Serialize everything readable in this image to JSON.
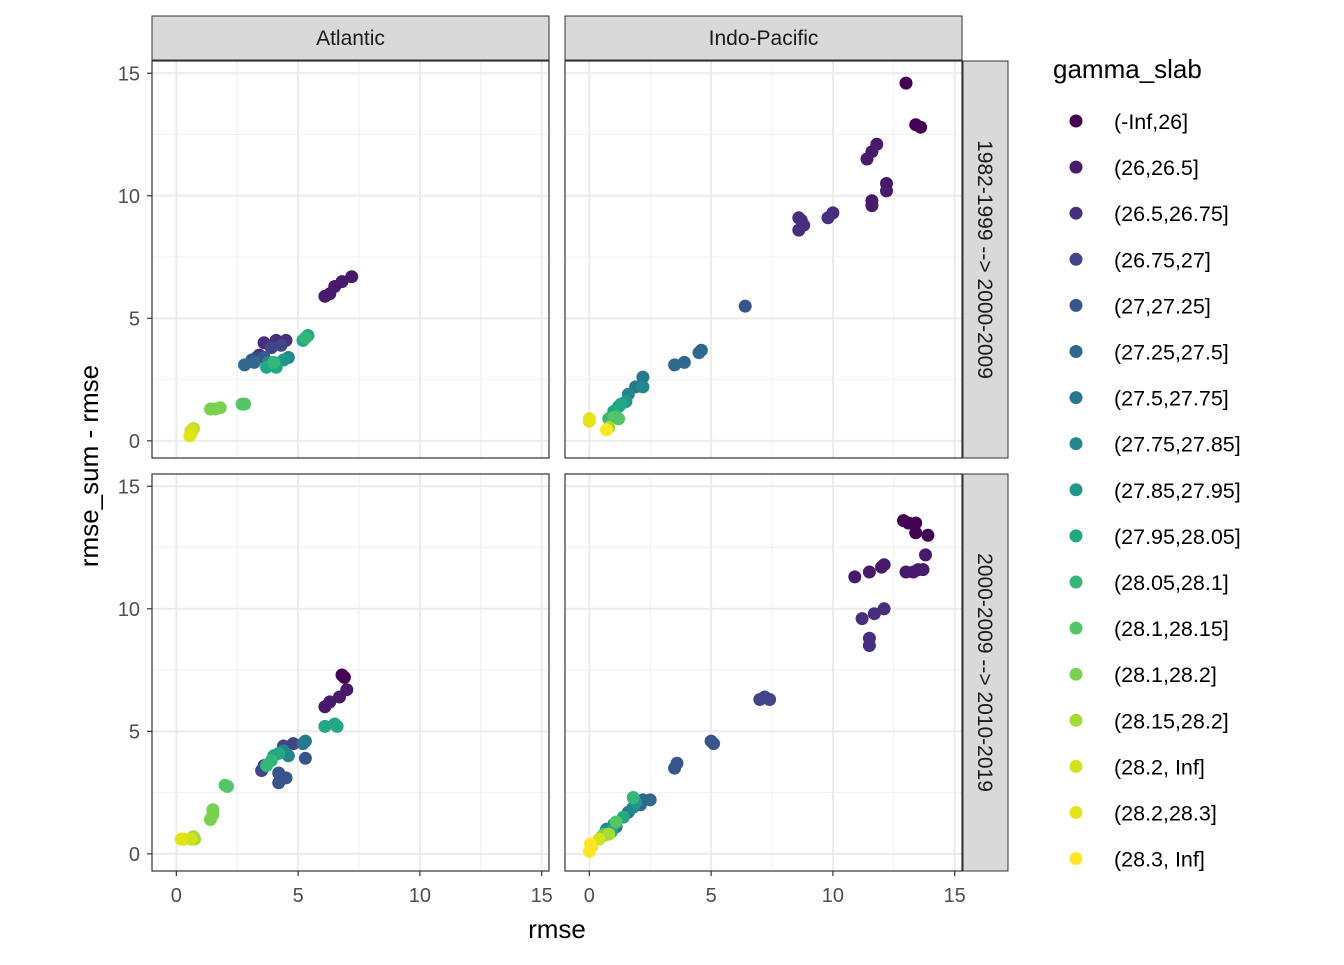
{
  "chart_data": {
    "type": "scatter",
    "xlabel": "rmse",
    "ylabel": "rmse_sum - rmse",
    "xlim": [
      -1,
      15.3
    ],
    "ylim": [
      -0.7,
      15.5
    ],
    "x_ticks": [
      0,
      5,
      10,
      15
    ],
    "y_ticks": [
      0,
      5,
      10,
      15
    ],
    "grid": true,
    "facet_columns": [
      "Atlantic",
      "Indo-Pacific"
    ],
    "facet_rows": [
      "1982-1999 --> 2000-2009",
      "2000-2009 --> 2010-2019"
    ],
    "legend": {
      "title": "gamma_slab",
      "placement": "right",
      "entries": [
        {
          "label": "(-Inf,26]",
          "color": "#440154"
        },
        {
          "label": "(26,26.5]",
          "color": "#481A6C"
        },
        {
          "label": "(26.5,26.75]",
          "color": "#472F7D"
        },
        {
          "label": "(26.75,27]",
          "color": "#414487"
        },
        {
          "label": "(27,27.25]",
          "color": "#39568C"
        },
        {
          "label": "(27.25,27.5]",
          "color": "#31688E"
        },
        {
          "label": "(27.5,27.75]",
          "color": "#2A788E"
        },
        {
          "label": "(27.75,27.85]",
          "color": "#23888E"
        },
        {
          "label": "(27.85,27.95]",
          "color": "#1F988B"
        },
        {
          "label": "(27.95,28.05]",
          "color": "#22A884"
        },
        {
          "label": "(28.05,28.1]",
          "color": "#35B779"
        },
        {
          "label": "(28.1,28.15]",
          "color": "#54C568"
        },
        {
          "label": "(28.1,28.2]",
          "color": "#7AD151"
        },
        {
          "label": "(28.15,28.2]",
          "color": "#A5DB36"
        },
        {
          "label": "(28.2, Inf]",
          "color": "#D2E21B"
        },
        {
          "label": "(28.2,28.3]",
          "color": "#E4E419"
        },
        {
          "label": "(28.3, Inf]",
          "color": "#FDE725"
        }
      ]
    },
    "panels": [
      {
        "column": "Atlantic",
        "row": "1982-1999 --> 2000-2009",
        "points": [
          {
            "c": 1,
            "x": 6.1,
            "y": 5.9
          },
          {
            "c": 1,
            "x": 6.3,
            "y": 6.0
          },
          {
            "c": 1,
            "x": 6.5,
            "y": 6.3
          },
          {
            "c": 1,
            "x": 6.8,
            "y": 6.5
          },
          {
            "c": 1,
            "x": 7.2,
            "y": 6.7
          },
          {
            "c": 2,
            "x": 3.6,
            "y": 4.0
          },
          {
            "c": 2,
            "x": 4.1,
            "y": 4.1
          },
          {
            "c": 2,
            "x": 4.5,
            "y": 4.1
          },
          {
            "c": 2,
            "x": 3.4,
            "y": 3.5
          },
          {
            "c": 3,
            "x": 3.9,
            "y": 3.8
          },
          {
            "c": 3,
            "x": 4.3,
            "y": 3.9
          },
          {
            "c": 3,
            "x": 3.3,
            "y": 3.4
          },
          {
            "c": 4,
            "x": 3.1,
            "y": 3.3
          },
          {
            "c": 4,
            "x": 3.6,
            "y": 3.4
          },
          {
            "c": 5,
            "x": 2.8,
            "y": 3.1
          },
          {
            "c": 5,
            "x": 3.2,
            "y": 3.2
          },
          {
            "c": 7,
            "x": 3.8,
            "y": 3.2
          },
          {
            "c": 7,
            "x": 4.6,
            "y": 3.4
          },
          {
            "c": 8,
            "x": 4.1,
            "y": 3.1
          },
          {
            "c": 8,
            "x": 4.4,
            "y": 3.3
          },
          {
            "c": 9,
            "x": 3.7,
            "y": 3.0
          },
          {
            "c": 9,
            "x": 4.1,
            "y": 3.0
          },
          {
            "c": 9,
            "x": 5.2,
            "y": 4.1
          },
          {
            "c": 9,
            "x": 5.4,
            "y": 4.3
          },
          {
            "c": 10,
            "x": 5.3,
            "y": 4.2
          },
          {
            "c": 10,
            "x": 4.0,
            "y": 3.2
          },
          {
            "c": 11,
            "x": 2.7,
            "y": 1.5
          },
          {
            "c": 11,
            "x": 2.8,
            "y": 1.5
          },
          {
            "c": 12,
            "x": 1.4,
            "y": 1.3
          },
          {
            "c": 12,
            "x": 1.6,
            "y": 1.3
          },
          {
            "c": 12,
            "x": 1.8,
            "y": 1.35
          },
          {
            "c": 13,
            "x": 0.6,
            "y": 0.4
          },
          {
            "c": 13,
            "x": 0.7,
            "y": 0.5
          },
          {
            "c": 14,
            "x": 0.6,
            "y": 0.3
          },
          {
            "c": 14,
            "x": 0.65,
            "y": 0.45
          },
          {
            "c": 15,
            "x": 0.55,
            "y": 0.2
          }
        ]
      },
      {
        "column": "Indo-Pacific",
        "row": "1982-1999 --> 2000-2009",
        "points": [
          {
            "c": 0,
            "x": 13.0,
            "y": 14.6
          },
          {
            "c": 0,
            "x": 13.4,
            "y": 12.9
          },
          {
            "c": 0,
            "x": 13.6,
            "y": 12.8
          },
          {
            "c": 1,
            "x": 11.4,
            "y": 11.5
          },
          {
            "c": 1,
            "x": 11.6,
            "y": 11.8
          },
          {
            "c": 1,
            "x": 11.8,
            "y": 12.1
          },
          {
            "c": 1,
            "x": 12.2,
            "y": 10.5
          },
          {
            "c": 1,
            "x": 12.2,
            "y": 10.2
          },
          {
            "c": 1,
            "x": 11.6,
            "y": 9.8
          },
          {
            "c": 1,
            "x": 11.6,
            "y": 9.6
          },
          {
            "c": 2,
            "x": 9.8,
            "y": 9.1
          },
          {
            "c": 2,
            "x": 10.0,
            "y": 9.3
          },
          {
            "c": 2,
            "x": 8.6,
            "y": 9.1
          },
          {
            "c": 2,
            "x": 8.6,
            "y": 8.6
          },
          {
            "c": 2,
            "x": 8.8,
            "y": 8.8
          },
          {
            "c": 2,
            "x": 8.7,
            "y": 9.0
          },
          {
            "c": 4,
            "x": 6.4,
            "y": 5.5
          },
          {
            "c": 5,
            "x": 4.5,
            "y": 3.6
          },
          {
            "c": 5,
            "x": 4.6,
            "y": 3.7
          },
          {
            "c": 5,
            "x": 3.5,
            "y": 3.1
          },
          {
            "c": 5,
            "x": 3.9,
            "y": 3.2
          },
          {
            "c": 6,
            "x": 2.2,
            "y": 2.6
          },
          {
            "c": 6,
            "x": 1.9,
            "y": 2.2
          },
          {
            "c": 7,
            "x": 1.6,
            "y": 1.9
          },
          {
            "c": 7,
            "x": 2.2,
            "y": 2.2
          },
          {
            "c": 8,
            "x": 1.2,
            "y": 1.4
          },
          {
            "c": 8,
            "x": 1.5,
            "y": 1.6
          },
          {
            "c": 9,
            "x": 1.0,
            "y": 1.2
          },
          {
            "c": 9,
            "x": 1.3,
            "y": 1.5
          },
          {
            "c": 10,
            "x": 0.8,
            "y": 0.9
          },
          {
            "c": 10,
            "x": 1.1,
            "y": 1.0
          },
          {
            "c": 11,
            "x": 1.0,
            "y": 0.95
          },
          {
            "c": 11,
            "x": 1.2,
            "y": 0.9
          },
          {
            "c": 13,
            "x": 0.8,
            "y": 0.55
          },
          {
            "c": 15,
            "x": 0.0,
            "y": 0.8
          },
          {
            "c": 15,
            "x": 0.0,
            "y": 0.9
          },
          {
            "c": 16,
            "x": 0.7,
            "y": 0.45
          }
        ]
      },
      {
        "column": "Atlantic",
        "row": "2000-2009 --> 2010-2019",
        "points": [
          {
            "c": 0,
            "x": 6.8,
            "y": 7.3
          },
          {
            "c": 0,
            "x": 6.9,
            "y": 7.2
          },
          {
            "c": 1,
            "x": 7.0,
            "y": 6.7
          },
          {
            "c": 1,
            "x": 6.7,
            "y": 6.4
          },
          {
            "c": 1,
            "x": 6.3,
            "y": 6.2
          },
          {
            "c": 1,
            "x": 6.1,
            "y": 6.0
          },
          {
            "c": 3,
            "x": 4.4,
            "y": 4.4
          },
          {
            "c": 3,
            "x": 4.8,
            "y": 4.5
          },
          {
            "c": 3,
            "x": 3.6,
            "y": 3.6
          },
          {
            "c": 3,
            "x": 3.5,
            "y": 3.4
          },
          {
            "c": 4,
            "x": 4.2,
            "y": 3.3
          },
          {
            "c": 4,
            "x": 4.5,
            "y": 3.1
          },
          {
            "c": 4,
            "x": 4.2,
            "y": 2.9
          },
          {
            "c": 4,
            "x": 5.3,
            "y": 3.9
          },
          {
            "c": 6,
            "x": 5.3,
            "y": 4.6
          },
          {
            "c": 6,
            "x": 5.2,
            "y": 4.5
          },
          {
            "c": 7,
            "x": 4.4,
            "y": 4.2
          },
          {
            "c": 7,
            "x": 4.6,
            "y": 4.0
          },
          {
            "c": 9,
            "x": 4.0,
            "y": 4.0
          },
          {
            "c": 9,
            "x": 4.2,
            "y": 4.1
          },
          {
            "c": 9,
            "x": 6.1,
            "y": 5.2
          },
          {
            "c": 9,
            "x": 6.5,
            "y": 5.3
          },
          {
            "c": 9,
            "x": 6.6,
            "y": 5.2
          },
          {
            "c": 10,
            "x": 3.9,
            "y": 3.8
          },
          {
            "c": 10,
            "x": 3.7,
            "y": 3.6
          },
          {
            "c": 11,
            "x": 2.0,
            "y": 2.8
          },
          {
            "c": 11,
            "x": 2.1,
            "y": 2.75
          },
          {
            "c": 12,
            "x": 1.5,
            "y": 1.8
          },
          {
            "c": 12,
            "x": 1.5,
            "y": 1.6
          },
          {
            "c": 12,
            "x": 1.4,
            "y": 1.4
          },
          {
            "c": 13,
            "x": 0.7,
            "y": 0.7
          },
          {
            "c": 13,
            "x": 0.75,
            "y": 0.6
          },
          {
            "c": 14,
            "x": 0.3,
            "y": 0.6
          },
          {
            "c": 14,
            "x": 0.6,
            "y": 0.6
          },
          {
            "c": 15,
            "x": 0.2,
            "y": 0.6
          }
        ]
      },
      {
        "column": "Indo-Pacific",
        "row": "2000-2009 --> 2010-2019",
        "points": [
          {
            "c": 0,
            "x": 12.9,
            "y": 13.6
          },
          {
            "c": 0,
            "x": 13.1,
            "y": 13.5
          },
          {
            "c": 0,
            "x": 13.4,
            "y": 13.5
          },
          {
            "c": 0,
            "x": 13.4,
            "y": 13.1
          },
          {
            "c": 0,
            "x": 13.9,
            "y": 13.0
          },
          {
            "c": 1,
            "x": 13.8,
            "y": 12.2
          },
          {
            "c": 1,
            "x": 13.0,
            "y": 11.5
          },
          {
            "c": 1,
            "x": 13.3,
            "y": 11.5
          },
          {
            "c": 1,
            "x": 13.5,
            "y": 11.6
          },
          {
            "c": 1,
            "x": 13.7,
            "y": 11.6
          },
          {
            "c": 1,
            "x": 10.9,
            "y": 11.3
          },
          {
            "c": 1,
            "x": 11.5,
            "y": 11.5
          },
          {
            "c": 1,
            "x": 12.0,
            "y": 11.7
          },
          {
            "c": 1,
            "x": 12.1,
            "y": 11.8
          },
          {
            "c": 2,
            "x": 11.2,
            "y": 9.6
          },
          {
            "c": 2,
            "x": 11.7,
            "y": 9.8
          },
          {
            "c": 2,
            "x": 12.1,
            "y": 10.0
          },
          {
            "c": 2,
            "x": 11.5,
            "y": 8.8
          },
          {
            "c": 2,
            "x": 11.5,
            "y": 8.5
          },
          {
            "c": 3,
            "x": 7.2,
            "y": 6.4
          },
          {
            "c": 3,
            "x": 7.4,
            "y": 6.3
          },
          {
            "c": 3,
            "x": 7.0,
            "y": 6.3
          },
          {
            "c": 4,
            "x": 5.0,
            "y": 4.6
          },
          {
            "c": 4,
            "x": 5.1,
            "y": 4.5
          },
          {
            "c": 4,
            "x": 3.6,
            "y": 3.7
          },
          {
            "c": 4,
            "x": 3.5,
            "y": 3.5
          },
          {
            "c": 5,
            "x": 2.2,
            "y": 2.2
          },
          {
            "c": 5,
            "x": 2.5,
            "y": 2.2
          },
          {
            "c": 5,
            "x": 2.1,
            "y": 2.0
          },
          {
            "c": 6,
            "x": 1.6,
            "y": 1.7
          },
          {
            "c": 6,
            "x": 1.1,
            "y": 1.1
          },
          {
            "c": 7,
            "x": 1.8,
            "y": 1.9
          },
          {
            "c": 7,
            "x": 0.7,
            "y": 1.0
          },
          {
            "c": 8,
            "x": 1.9,
            "y": 2.1
          },
          {
            "c": 8,
            "x": 1.0,
            "y": 1.2
          },
          {
            "c": 9,
            "x": 1.4,
            "y": 1.5
          },
          {
            "c": 9,
            "x": 0.9,
            "y": 0.9
          },
          {
            "c": 10,
            "x": 1.8,
            "y": 2.3
          },
          {
            "c": 10,
            "x": 0.7,
            "y": 0.8
          },
          {
            "c": 11,
            "x": 1.1,
            "y": 1.3
          },
          {
            "c": 11,
            "x": 0.6,
            "y": 0.8
          },
          {
            "c": 12,
            "x": 0.5,
            "y": 0.7
          },
          {
            "c": 13,
            "x": 0.8,
            "y": 0.8
          },
          {
            "c": 14,
            "x": 0.4,
            "y": 0.6
          },
          {
            "c": 15,
            "x": 0.1,
            "y": 0.3
          },
          {
            "c": 16,
            "x": 0.0,
            "y": 0.1
          },
          {
            "c": 16,
            "x": 0.05,
            "y": 0.4
          }
        ]
      }
    ]
  }
}
